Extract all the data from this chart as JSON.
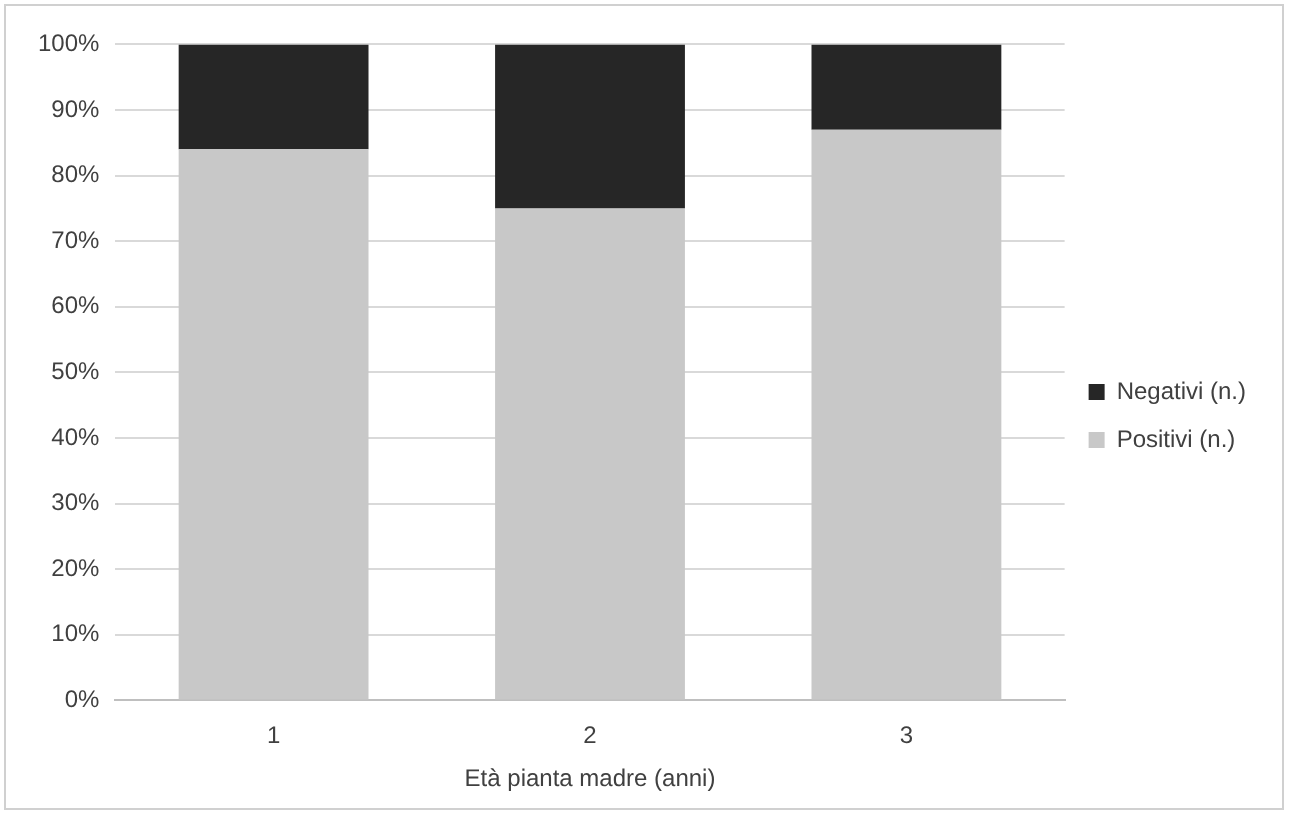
{
  "chart_data": {
    "type": "bar",
    "xlabel": "Età pianta madre (anni)",
    "categories": [
      "1",
      "2",
      "3"
    ],
    "stacked": true,
    "series": [
      {
        "name": "Positivi (n.)",
        "color": "#c8c8c8",
        "values": [
          84,
          75,
          87
        ]
      },
      {
        "name": "Negativi (n.)",
        "color": "#262626",
        "values": [
          16,
          25,
          13
        ]
      }
    ],
    "ylim": [
      0,
      100
    ],
    "yticks": [
      {
        "value": 0,
        "label": "0%"
      },
      {
        "value": 10,
        "label": "10%"
      },
      {
        "value": 20,
        "label": "20%"
      },
      {
        "value": 30,
        "label": "30%"
      },
      {
        "value": 40,
        "label": "40%"
      },
      {
        "value": 50,
        "label": "50%"
      },
      {
        "value": 60,
        "label": "60%"
      },
      {
        "value": 70,
        "label": "70%"
      },
      {
        "value": 80,
        "label": "80%"
      },
      {
        "value": 90,
        "label": "90%"
      },
      {
        "value": 100,
        "label": "100%"
      }
    ],
    "grid": "y",
    "legend": "right"
  }
}
